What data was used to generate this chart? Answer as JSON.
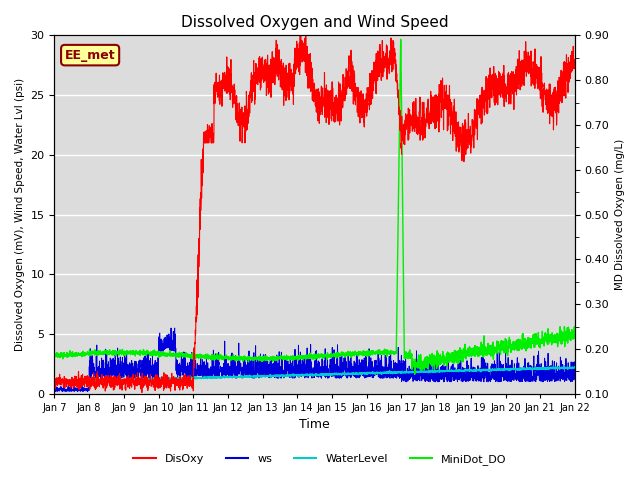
{
  "title": "Dissolved Oxygen and Wind Speed",
  "ylabel_left": "Dissolved Oxygen (mV), Wind Speed, Water Lvl (psi)",
  "ylabel_right": "MD Dissolved Oxygen (mg/L)",
  "xlabel": "Time",
  "xlim_days": [
    0,
    15
  ],
  "ylim_left": [
    0,
    30
  ],
  "ylim_right": [
    0.1,
    0.9
  ],
  "xtick_labels": [
    "Jan 7",
    "Jan 8",
    "Jan 9",
    "Jan 10",
    "Jan 11",
    "Jan 12",
    "Jan 13",
    "Jan 14",
    "Jan 15",
    "Jan 16",
    "Jan 17",
    "Jan 18",
    "Jan 19",
    "Jan 20",
    "Jan 21",
    "Jan 22"
  ],
  "ytick_left": [
    0,
    5,
    10,
    15,
    20,
    25,
    30
  ],
  "ytick_right": [
    0.1,
    0.2,
    0.3,
    0.4,
    0.5,
    0.6,
    0.7,
    0.8,
    0.9
  ],
  "colors": {
    "DisOxy": "#FF0000",
    "ws": "#0000DD",
    "WaterLevel": "#00CCCC",
    "MiniDot_DO": "#00EE00"
  },
  "legend_label": "EE_met",
  "background_color": "#DCDCDC",
  "grid_color": "#FFFFFF"
}
